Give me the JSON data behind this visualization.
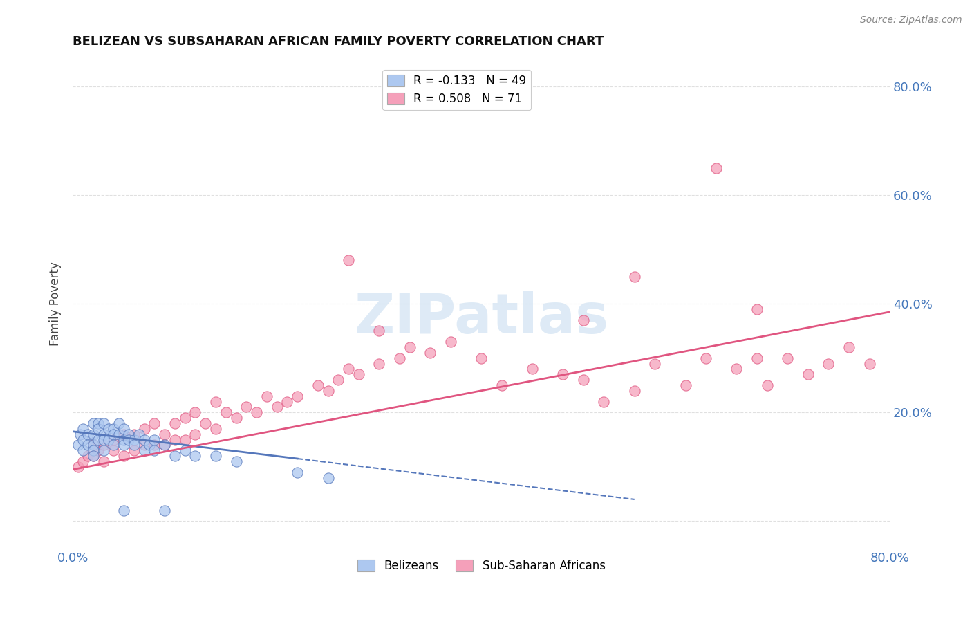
{
  "title": "BELIZEAN VS SUBSAHARAN AFRICAN FAMILY POVERTY CORRELATION CHART",
  "source": "Source: ZipAtlas.com",
  "ylabel": "Family Poverty",
  "legend_label1": "Belizeans",
  "legend_label2": "Sub-Saharan Africans",
  "r1": -0.133,
  "n1": 49,
  "r2": 0.508,
  "n2": 71,
  "color1": "#adc8f0",
  "color2": "#f5a0ba",
  "trend1_color": "#5577bb",
  "trend2_color": "#e05580",
  "watermark": "ZIPatlas",
  "watermark_color": "#c8ddf0",
  "xlim": [
    0.0,
    0.8
  ],
  "ylim": [
    -0.05,
    0.85
  ],
  "yticks": [
    0.0,
    0.2,
    0.4,
    0.6,
    0.8
  ],
  "ytick_labels": [
    "",
    "20.0%",
    "40.0%",
    "60.0%",
    "80.0%"
  ],
  "grid_color": "#dddddd",
  "background_color": "#ffffff",
  "bel_x": [
    0.005,
    0.007,
    0.01,
    0.01,
    0.01,
    0.015,
    0.015,
    0.02,
    0.02,
    0.02,
    0.02,
    0.02,
    0.025,
    0.025,
    0.025,
    0.03,
    0.03,
    0.03,
    0.03,
    0.035,
    0.035,
    0.04,
    0.04,
    0.04,
    0.045,
    0.045,
    0.05,
    0.05,
    0.05,
    0.055,
    0.055,
    0.06,
    0.06,
    0.065,
    0.07,
    0.07,
    0.075,
    0.08,
    0.08,
    0.09,
    0.1,
    0.11,
    0.12,
    0.14,
    0.16,
    0.22,
    0.25,
    0.05,
    0.09
  ],
  "bel_y": [
    0.14,
    0.16,
    0.17,
    0.15,
    0.13,
    0.16,
    0.14,
    0.18,
    0.16,
    0.14,
    0.13,
    0.12,
    0.18,
    0.17,
    0.15,
    0.18,
    0.16,
    0.15,
    0.13,
    0.17,
    0.15,
    0.17,
    0.16,
    0.14,
    0.18,
    0.16,
    0.17,
    0.15,
    0.14,
    0.16,
    0.15,
    0.15,
    0.14,
    0.16,
    0.15,
    0.13,
    0.14,
    0.15,
    0.13,
    0.14,
    0.12,
    0.13,
    0.12,
    0.12,
    0.11,
    0.09,
    0.08,
    0.02,
    0.02
  ],
  "afr_x": [
    0.005,
    0.01,
    0.015,
    0.02,
    0.02,
    0.025,
    0.03,
    0.03,
    0.04,
    0.04,
    0.05,
    0.05,
    0.06,
    0.06,
    0.07,
    0.07,
    0.08,
    0.08,
    0.09,
    0.09,
    0.1,
    0.1,
    0.11,
    0.11,
    0.12,
    0.12,
    0.13,
    0.14,
    0.14,
    0.15,
    0.16,
    0.17,
    0.18,
    0.19,
    0.2,
    0.21,
    0.22,
    0.24,
    0.25,
    0.26,
    0.27,
    0.28,
    0.3,
    0.32,
    0.33,
    0.35,
    0.37,
    0.4,
    0.42,
    0.45,
    0.48,
    0.5,
    0.52,
    0.55,
    0.57,
    0.6,
    0.62,
    0.65,
    0.67,
    0.68,
    0.7,
    0.72,
    0.74,
    0.76,
    0.78,
    0.63,
    0.67,
    0.5,
    0.55,
    0.27,
    0.3
  ],
  "afr_y": [
    0.1,
    0.11,
    0.12,
    0.12,
    0.14,
    0.13,
    0.11,
    0.14,
    0.13,
    0.15,
    0.12,
    0.16,
    0.13,
    0.16,
    0.14,
    0.17,
    0.14,
    0.18,
    0.14,
    0.16,
    0.15,
    0.18,
    0.15,
    0.19,
    0.16,
    0.2,
    0.18,
    0.17,
    0.22,
    0.2,
    0.19,
    0.21,
    0.2,
    0.23,
    0.21,
    0.22,
    0.23,
    0.25,
    0.24,
    0.26,
    0.28,
    0.27,
    0.29,
    0.3,
    0.32,
    0.31,
    0.33,
    0.3,
    0.25,
    0.28,
    0.27,
    0.26,
    0.22,
    0.24,
    0.29,
    0.25,
    0.3,
    0.28,
    0.3,
    0.25,
    0.3,
    0.27,
    0.29,
    0.32,
    0.29,
    0.65,
    0.39,
    0.37,
    0.45,
    0.48,
    0.35
  ],
  "trend1_x": [
    0.0,
    0.55
  ],
  "trend1_y_start": 0.165,
  "trend1_y_end": 0.04,
  "trend1_solid_end": 0.22,
  "trend2_x": [
    0.0,
    0.8
  ],
  "trend2_y_start": 0.095,
  "trend2_y_end": 0.385
}
